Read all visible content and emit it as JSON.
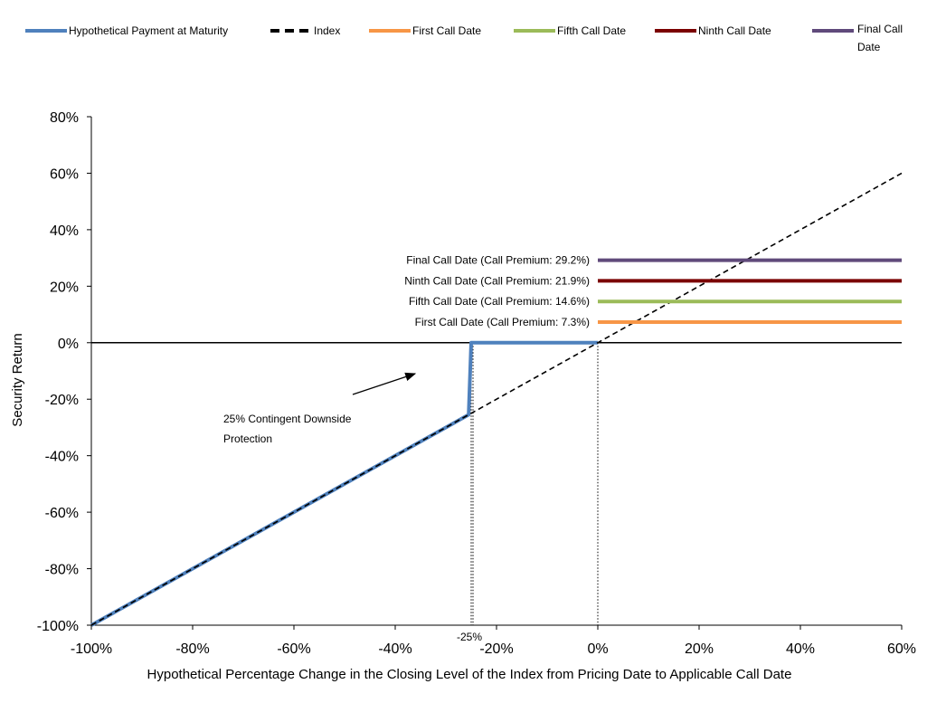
{
  "chart_data": {
    "type": "line",
    "xlabel": "Hypothetical Percentage Change in the Closing Level of the Index from Pricing Date to Applicable Call Date",
    "ylabel": "Security Return",
    "xlim": [
      -100,
      60
    ],
    "ylim": [
      -100,
      80
    ],
    "x_ticks": [
      "-100%",
      "-80%",
      "-60%",
      "-40%",
      "-20%",
      "0%",
      "20%",
      "40%",
      "60%"
    ],
    "x_tick_values": [
      -100,
      -80,
      -60,
      -40,
      -20,
      0,
      20,
      40,
      60
    ],
    "y_ticks": [
      "80%",
      "60%",
      "40%",
      "20%",
      "0%",
      "-20%",
      "-40%",
      "-60%",
      "-80%",
      "-100%"
    ],
    "y_tick_values": [
      80,
      60,
      40,
      20,
      0,
      -20,
      -40,
      -60,
      -80,
      -100
    ],
    "grid": false,
    "legend": {
      "placement": "top",
      "items": [
        {
          "name": "Hypothetical Payment at Maturity",
          "color": "#4F81BD",
          "style": "solid"
        },
        {
          "name": "Index",
          "color": "#000000",
          "style": "dashed"
        },
        {
          "name": "First Call Date",
          "color": "#F79646",
          "style": "solid"
        },
        {
          "name": "Fifth Call Date",
          "color": "#9BBB59",
          "style": "solid"
        },
        {
          "name": "Ninth Call Date",
          "color": "#7B0000",
          "style": "solid"
        },
        {
          "name": "Final Call Date",
          "color": "#604A7B",
          "style": "solid"
        }
      ]
    },
    "series": [
      {
        "name": "Hypothetical Payment at Maturity",
        "color": "#4F81BD",
        "x": [
          -100,
          -25.5,
          -25,
          0
        ],
        "y": [
          -100,
          -25.5,
          0,
          0
        ]
      },
      {
        "name": "Index",
        "color": "#000000",
        "x": [
          -100,
          60
        ],
        "y": [
          -100,
          60
        ]
      },
      {
        "name": "First Call Date",
        "color": "#F79646",
        "x": [
          0,
          60
        ],
        "y": [
          7.3,
          7.3
        ]
      },
      {
        "name": "Fifth Call Date",
        "color": "#9BBB59",
        "x": [
          0,
          60
        ],
        "y": [
          14.6,
          14.6
        ]
      },
      {
        "name": "Ninth Call Date",
        "color": "#7B0000",
        "x": [
          0,
          60
        ],
        "y": [
          21.9,
          21.9
        ]
      },
      {
        "name": "Final Call Date",
        "color": "#604A7B",
        "x": [
          0,
          60
        ],
        "y": [
          29.2,
          29.2
        ]
      }
    ],
    "reference_lines": [
      {
        "type": "vertical",
        "x": -25,
        "label": "-25%",
        "style": "dotted"
      },
      {
        "type": "vertical",
        "x": 0,
        "style": "dotted"
      }
    ],
    "annotations": [
      {
        "text": "25% Contingent Downside Protection"
      },
      {
        "text": "First Call Date (Call Premium: 7.3%)",
        "y": 7.3
      },
      {
        "text": "Fifth Call Date (Call Premium: 14.6%)",
        "y": 14.6
      },
      {
        "text": "Ninth Call Date (Call Premium: 21.9%)",
        "y": 21.9
      },
      {
        "text": "Final Call Date (Call Premium: 29.2%)",
        "y": 29.2
      }
    ]
  }
}
